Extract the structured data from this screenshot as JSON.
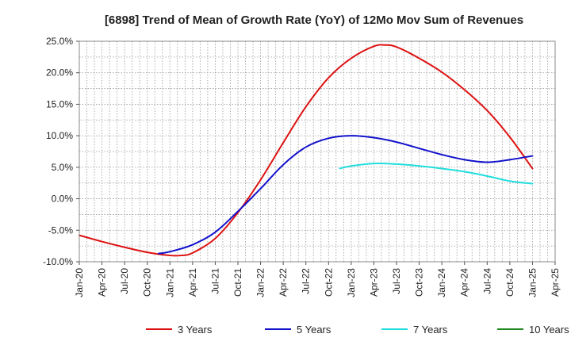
{
  "chart_data": {
    "type": "line",
    "title": "[6898]  Trend of Mean of Growth Rate (YoY) of 12Mo Mov Sum of Revenues",
    "xlabel": "",
    "ylabel": "",
    "ylim": [
      -10,
      25
    ],
    "yticks": [
      25,
      20,
      15,
      10,
      5,
      0,
      -5,
      -10
    ],
    "ytick_labels": [
      "25.0%",
      "20.0%",
      "15.0%",
      "10.0%",
      "5.0%",
      "0.0%",
      "-5.0%",
      "-10.0%"
    ],
    "categories": [
      "Jan-20",
      "Apr-20",
      "Jul-20",
      "Oct-20",
      "Jan-21",
      "Apr-21",
      "Jul-21",
      "Oct-21",
      "Jan-22",
      "Apr-22",
      "Jul-22",
      "Oct-22",
      "Jan-23",
      "Apr-23",
      "Jul-23",
      "Oct-23",
      "Jan-24",
      "Apr-24",
      "Jul-24",
      "Oct-24",
      "Jan-25",
      "Apr-25"
    ],
    "grid": true,
    "legend_position": "bottom",
    "series": [
      {
        "name": "3 Years",
        "color": "#dd1111",
        "points": [
          [
            0,
            -5.8
          ],
          [
            1,
            -6.8
          ],
          [
            2,
            -7.7
          ],
          [
            3,
            -8.5
          ],
          [
            4,
            -9.0
          ],
          [
            4.5,
            -9.0
          ],
          [
            5,
            -8.6
          ],
          [
            6,
            -6.3
          ],
          [
            7,
            -2.2
          ],
          [
            8,
            3.0
          ],
          [
            9,
            8.9
          ],
          [
            10,
            14.6
          ],
          [
            11,
            19.2
          ],
          [
            12,
            22.3
          ],
          [
            13,
            24.2
          ],
          [
            13.5,
            24.4
          ],
          [
            14,
            24.1
          ],
          [
            15,
            22.3
          ],
          [
            16,
            20.1
          ],
          [
            17,
            17.3
          ],
          [
            18,
            14.0
          ],
          [
            19,
            9.8
          ],
          [
            20,
            4.8
          ]
        ]
      },
      {
        "name": "5 Years",
        "color": "#1111cc",
        "points": [
          [
            3.5,
            -8.7
          ],
          [
            4,
            -8.4
          ],
          [
            5,
            -7.3
          ],
          [
            6,
            -5.3
          ],
          [
            7,
            -2.0
          ],
          [
            8,
            1.6
          ],
          [
            9,
            5.4
          ],
          [
            10,
            8.2
          ],
          [
            11,
            9.6
          ],
          [
            12,
            10.0
          ],
          [
            13,
            9.7
          ],
          [
            14,
            9.0
          ],
          [
            15,
            8.0
          ],
          [
            16,
            7.0
          ],
          [
            17,
            6.2
          ],
          [
            18,
            5.8
          ],
          [
            19,
            6.2
          ],
          [
            20,
            6.8
          ]
        ]
      },
      {
        "name": "7 Years",
        "color": "#22dddd",
        "points": [
          [
            11.5,
            4.8
          ],
          [
            12,
            5.2
          ],
          [
            13,
            5.6
          ],
          [
            14,
            5.5
          ],
          [
            15,
            5.2
          ],
          [
            16,
            4.8
          ],
          [
            17,
            4.3
          ],
          [
            18,
            3.6
          ],
          [
            19,
            2.8
          ],
          [
            20,
            2.4
          ]
        ]
      },
      {
        "name": "10 Years",
        "color": "#228822",
        "points": []
      }
    ]
  }
}
